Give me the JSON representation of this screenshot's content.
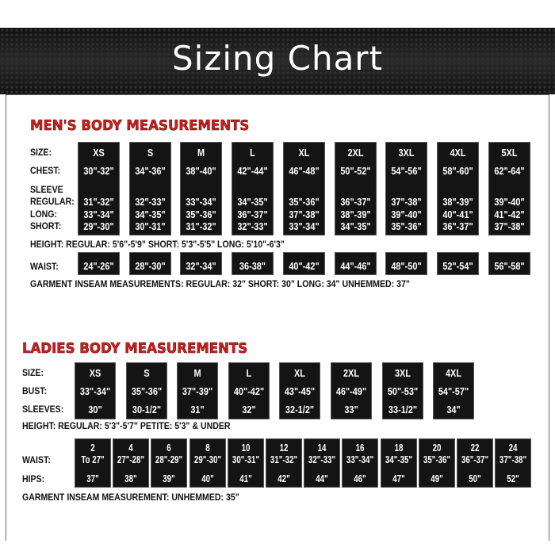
{
  "title": "Sizing Chart",
  "colors": {
    "heading": "#d21f1f",
    "box": "#141414",
    "banner": "#1b1b1b"
  },
  "men": {
    "heading": "MEN'S BODY MEASUREMENTS",
    "labels": {
      "size": "SIZE:",
      "chest": "CHEST:",
      "sleeve": "SLEEVE",
      "regular": "REGULAR:",
      "long": "LONG:",
      "short": "SHORT:",
      "waist": "WAIST:"
    },
    "sizes": [
      {
        "size": "XS",
        "chest": "30\"-32\"",
        "regular": "31\"-32\"",
        "long": "33\"-34\"",
        "short": "29\"-30\"",
        "waist": "24\"-26\""
      },
      {
        "size": "S",
        "chest": "34\"-36\"",
        "regular": "32\"-33\"",
        "long": "34\"-35\"",
        "short": "30\"-31\"",
        "waist": "28\"-30\""
      },
      {
        "size": "M",
        "chest": "38\"-40\"",
        "regular": "33\"-34\"",
        "long": "35\"-36\"",
        "short": "31\"-32\"",
        "waist": "32\"-34\""
      },
      {
        "size": "L",
        "chest": "42\"-44\"",
        "regular": "34\"-35\"",
        "long": "36\"-37\"",
        "short": "32\"-33\"",
        "waist": "36-38\""
      },
      {
        "size": "XL",
        "chest": "46\"-48\"",
        "regular": "35\"-36\"",
        "long": "37\"-38\"",
        "short": "33\"-34\"",
        "waist": "40\"-42\""
      },
      {
        "size": "2XL",
        "chest": "50\"-52\"",
        "regular": "36\"-37\"",
        "long": "38\"-39\"",
        "short": "34\"-35\"",
        "waist": "44\"-46\""
      },
      {
        "size": "3XL",
        "chest": "54\"-56\"",
        "regular": "37\"-38\"",
        "long": "39\"-40\"",
        "short": "35\"-36\"",
        "waist": "48\"-50\""
      },
      {
        "size": "4XL",
        "chest": "58\"-60\"",
        "regular": "38\"-39\"",
        "long": "40\"-41\"",
        "short": "36\"-37\"",
        "waist": "52\"-54\""
      },
      {
        "size": "5XL",
        "chest": "62\"-64\"",
        "regular": "39\"-40\"",
        "long": "41\"-42\"",
        "short": "37\"-38\"",
        "waist": "56\"-58\""
      }
    ],
    "height_note": "HEIGHT:  REGULAR: 5'6\"-5'9\"  SHORT: 5'3\"-5'5\"  LONG: 5'10\"-6'3\"",
    "inseam_note": "GARMENT INSEAM MEASUREMENTS:  REGULAR: 32\"  SHORT: 30\"  LONG: 34\"  UNHEMMED: 37\""
  },
  "ladies": {
    "heading": "LADIES BODY MEASUREMENTS",
    "labels": {
      "size": "SIZE:",
      "bust": "BUST:",
      "sleeves": "SLEEVES:",
      "waist": "WAIST:",
      "hips": "HIPS:"
    },
    "sizes": [
      {
        "size": "XS",
        "bust": "33\"-34\"",
        "sleeves": "30\""
      },
      {
        "size": "S",
        "bust": "35\"-36\"",
        "sleeves": "30-1/2\""
      },
      {
        "size": "M",
        "bust": "37\"-39\"",
        "sleeves": "31\""
      },
      {
        "size": "L",
        "bust": "40\"-42\"",
        "sleeves": "32\""
      },
      {
        "size": "XL",
        "bust": "43\"-45\"",
        "sleeves": "32-1/2\""
      },
      {
        "size": "2XL",
        "bust": "46\"-49\"",
        "sleeves": "33\""
      },
      {
        "size": "3XL",
        "bust": "50\"-53\"",
        "sleeves": "33-1/2\""
      },
      {
        "size": "4XL",
        "bust": "54\"-57\"",
        "sleeves": "34\""
      }
    ],
    "height_note": "HEIGHT:  REGULAR: 5'3\"-5'7\"  PETITE: 5'3\" & UNDER",
    "numeric_sizes": [
      {
        "size": "2",
        "waist": "To 27\"",
        "hips": "37\""
      },
      {
        "size": "4",
        "waist": "27\"-28\"",
        "hips": "38\""
      },
      {
        "size": "6",
        "waist": "28\"-29\"",
        "hips": "39\""
      },
      {
        "size": "8",
        "waist": "29\"-30\"",
        "hips": "40\""
      },
      {
        "size": "10",
        "waist": "30\"-31\"",
        "hips": "41\""
      },
      {
        "size": "12",
        "waist": "31\"-32\"",
        "hips": "42\""
      },
      {
        "size": "14",
        "waist": "32\"-33\"",
        "hips": "44\""
      },
      {
        "size": "16",
        "waist": "33\"-34\"",
        "hips": "46\""
      },
      {
        "size": "18",
        "waist": "34\"-35\"",
        "hips": "47\""
      },
      {
        "size": "20",
        "waist": "35\"-36\"",
        "hips": "49\""
      },
      {
        "size": "22",
        "waist": "36\"-37\"",
        "hips": "50\""
      },
      {
        "size": "24",
        "waist": "37\"-38\"",
        "hips": "52\""
      }
    ],
    "inseam_note": "GARMENT INSEAM MEASUREMENT:  UNHEMMED: 35\""
  }
}
